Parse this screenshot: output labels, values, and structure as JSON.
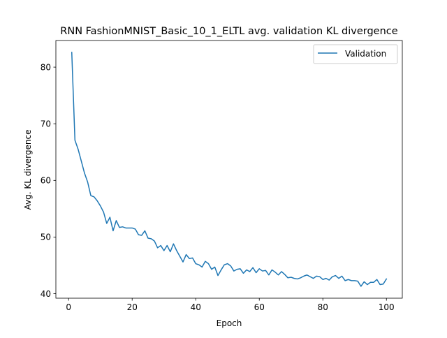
{
  "chart_data": {
    "type": "line",
    "title": "RNN FashionMNIST_Basic_10_1_ELTL avg. validation KL divergence",
    "xlabel": "Epoch",
    "ylabel": "Avg. KL divergence",
    "xlim": [
      -4,
      105
    ],
    "ylim": [
      39.2,
      84.7
    ],
    "xticks": [
      0,
      20,
      40,
      60,
      80,
      100
    ],
    "yticks": [
      40,
      50,
      60,
      70,
      80
    ],
    "grid": false,
    "legend_position": "top-right",
    "series": [
      {
        "name": "Validation",
        "color": "#1f77b4",
        "x": [
          1,
          2,
          3,
          4,
          5,
          6,
          7,
          8,
          9,
          10,
          11,
          12,
          13,
          14,
          15,
          16,
          17,
          18,
          19,
          20,
          21,
          22,
          23,
          24,
          25,
          26,
          27,
          28,
          29,
          30,
          31,
          32,
          33,
          34,
          35,
          36,
          37,
          38,
          39,
          40,
          41,
          42,
          43,
          44,
          45,
          46,
          47,
          48,
          49,
          50,
          51,
          52,
          53,
          54,
          55,
          56,
          57,
          58,
          59,
          60,
          61,
          62,
          63,
          64,
          65,
          66,
          67,
          68,
          69,
          70,
          71,
          72,
          73,
          74,
          75,
          76,
          77,
          78,
          79,
          80,
          81,
          82,
          83,
          84,
          85,
          86,
          87,
          88,
          89,
          90,
          91,
          92,
          93,
          94,
          95,
          96,
          97,
          98,
          99,
          100
        ],
        "y": [
          82.6,
          67.1,
          65.5,
          63.4,
          61.3,
          59.7,
          57.3,
          57.1,
          56.4,
          55.5,
          54.4,
          52.4,
          53.5,
          51.1,
          52.9,
          51.7,
          51.8,
          51.6,
          51.6,
          51.6,
          51.4,
          50.4,
          50.3,
          51.1,
          49.8,
          49.7,
          49.3,
          48.1,
          48.5,
          47.6,
          48.5,
          47.4,
          48.8,
          47.6,
          46.6,
          45.6,
          46.9,
          46.2,
          46.3,
          45.3,
          45.1,
          44.7,
          45.7,
          45.3,
          44.3,
          44.7,
          43.2,
          44.2,
          45.1,
          45.3,
          44.9,
          44.0,
          44.3,
          44.4,
          43.6,
          44.2,
          43.9,
          44.6,
          43.7,
          44.4,
          44.0,
          44.1,
          43.3,
          44.2,
          43.8,
          43.3,
          43.9,
          43.4,
          42.8,
          42.9,
          42.7,
          42.6,
          42.8,
          43.1,
          43.3,
          43.0,
          42.7,
          43.1,
          43.0,
          42.5,
          42.7,
          42.4,
          43.0,
          43.2,
          42.7,
          43.1,
          42.3,
          42.5,
          42.3,
          42.3,
          42.2,
          41.3,
          42.1,
          41.6,
          42.0,
          42.0,
          42.5,
          41.6,
          41.7,
          42.6
        ]
      }
    ]
  }
}
